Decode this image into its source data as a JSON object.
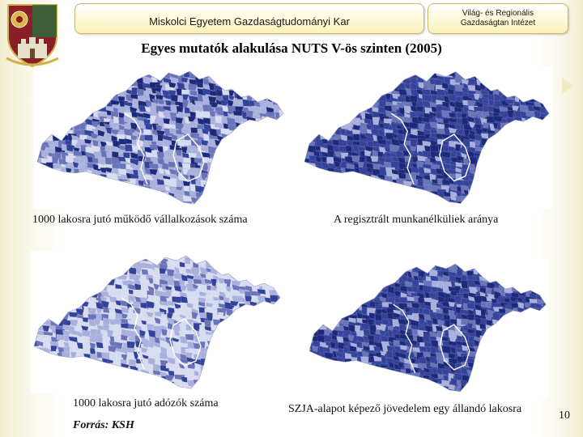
{
  "header": {
    "faculty": "Miskolci Egyetem Gazdaságtudományi Kar",
    "institute_line1": "Világ- és Regionális",
    "institute_line2": "Gazdaságtan Intézet"
  },
  "slide": {
    "title": "Egyes mutatók alakulása NUTS V-ös szinten (2005)",
    "source": "Forrás: KSH",
    "page_number": "10"
  },
  "maps": [
    {
      "caption": "1000 lakosra jutó működő vállalkozások száma",
      "shade": "medium"
    },
    {
      "caption": "A regisztrált munkanélküliek aránya",
      "shade": "dark"
    },
    {
      "caption": "1000 lakosra jutó adózók száma",
      "shade": "light"
    },
    {
      "caption": "SZJA-alapot képező jövedelem egy állandó lakosra",
      "shade": "dark"
    }
  ],
  "colors": {
    "very_dark": "#1d2a7a",
    "dark": "#34439a",
    "mid": "#6a74b8",
    "light": "#a9b0dc",
    "very_light": "#d8dcf0"
  }
}
